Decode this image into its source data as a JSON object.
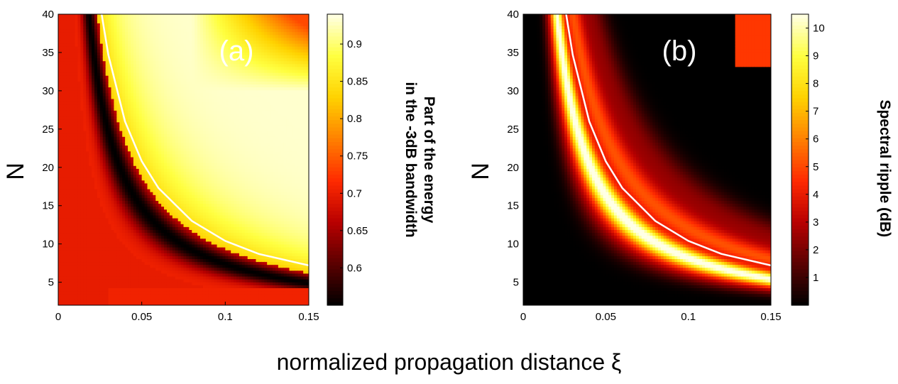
{
  "xlabel": "normalized propagation distance ξ",
  "colormap": [
    "#000000",
    "#5a0000",
    "#b80000",
    "#ff2a00",
    "#ff8000",
    "#ffd200",
    "#ffff40",
    "#ffffe6"
  ],
  "curve_color": "#ffffff",
  "chart_data": [
    {
      "type": "heatmap",
      "panel_label": "(a)",
      "xlim": [
        0,
        0.15
      ],
      "ylim": [
        2,
        40
      ],
      "xticks": [
        "0",
        "0.05",
        "0.1",
        "0.15"
      ],
      "yticks": [
        "5",
        "10",
        "15",
        "20",
        "25",
        "30",
        "35",
        "40"
      ],
      "ylabel": "N",
      "colorbar": {
        "label_line1": "Part of the energy",
        "label_line2": "in the -3dB bandwidth",
        "range": [
          0.55,
          0.94
        ],
        "ticks": [
          "0.6",
          "0.65",
          "0.7",
          "0.75",
          "0.8",
          "0.85",
          "0.9"
        ]
      },
      "curve": {
        "description": "white boundary curve",
        "x": [
          0.026,
          0.03,
          0.04,
          0.05,
          0.06,
          0.08,
          0.1,
          0.12,
          0.15
        ],
        "y": [
          40,
          34.7,
          26.0,
          20.8,
          17.3,
          13.0,
          10.4,
          8.7,
          7.2
        ]
      }
    },
    {
      "type": "heatmap",
      "panel_label": "(b)",
      "xlim": [
        0,
        0.15
      ],
      "ylim": [
        2,
        40
      ],
      "xticks": [
        "0",
        "0.05",
        "0.1",
        "0.15"
      ],
      "yticks": [
        "5",
        "10",
        "15",
        "20",
        "25",
        "30",
        "35",
        "40"
      ],
      "ylabel": "N",
      "colorbar": {
        "label": "Spectral ripple (dB)",
        "range": [
          0,
          10.5
        ],
        "ticks": [
          "1",
          "2",
          "3",
          "4",
          "5",
          "6",
          "7",
          "8",
          "9",
          "10"
        ]
      },
      "curve": {
        "description": "white boundary curve",
        "x": [
          0.026,
          0.03,
          0.04,
          0.05,
          0.06,
          0.08,
          0.1,
          0.12,
          0.15
        ],
        "y": [
          40,
          34.7,
          26.0,
          20.8,
          17.3,
          13.0,
          10.4,
          8.7,
          7.2
        ]
      }
    }
  ]
}
